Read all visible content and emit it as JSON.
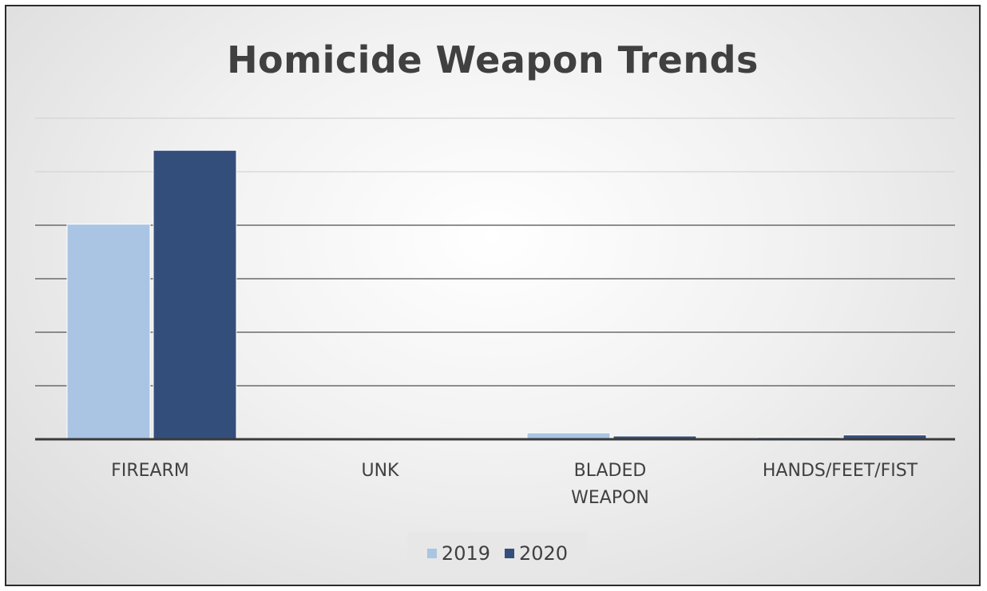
{
  "chart_data": {
    "type": "bar",
    "title": "Homicide Weapon Trends",
    "categories": [
      "FIREARM",
      "UNK",
      "BLADED WEAPON",
      "HANDS/FEET/FIST"
    ],
    "category_lines": [
      [
        "FIREARM"
      ],
      [
        "UNK"
      ],
      [
        "BLADED",
        "WEAPON"
      ],
      [
        "HANDS/FEET/FIST"
      ]
    ],
    "series": [
      {
        "name": "2019",
        "color": "#a9c5e3",
        "values": [
          201,
          0,
          6,
          2
        ]
      },
      {
        "name": "2020",
        "color": "#344e7c",
        "values": [
          270,
          0,
          3,
          4
        ]
      }
    ],
    "ylim": [
      0,
      300
    ],
    "grid": true,
    "legend_position": "bottom"
  }
}
